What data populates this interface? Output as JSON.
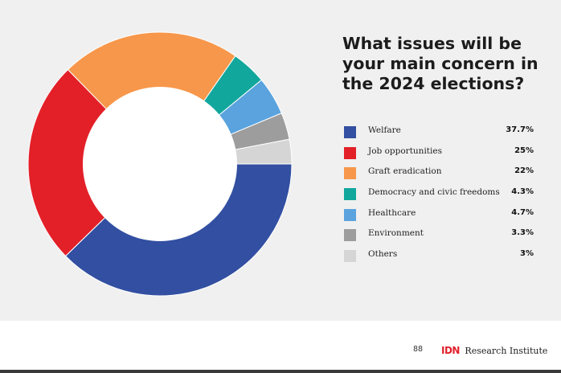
{
  "chart_data": {
    "type": "pie",
    "title": "What issues will be your main concern in the 2024 elections?",
    "donut": true,
    "legend_position": "right",
    "slices": [
      {
        "label": "Welfare",
        "value": 37.7,
        "display": "37.7%",
        "color": "#324fa1"
      },
      {
        "label": "Job opportunities",
        "value": 25,
        "display": "25%",
        "color": "#e32028"
      },
      {
        "label": "Graft eradication",
        "value": 22,
        "display": "22%",
        "color": "#f7974b"
      },
      {
        "label": "Democracy and civic freedoms",
        "value": 4.3,
        "display": "4.3%",
        "color": "#12a79c"
      },
      {
        "label": "Healthcare",
        "value": 4.7,
        "display": "4.7%",
        "color": "#5aa3de"
      },
      {
        "label": "Environment",
        "value": 3.3,
        "display": "3.3%",
        "color": "#9d9d9d"
      },
      {
        "label": "Others",
        "value": 3,
        "display": "3%",
        "color": "#d5d5d5"
      }
    ]
  },
  "footer": {
    "page_number": "88",
    "publisher_mark": "IDN",
    "publisher_name": "Research Institute"
  }
}
